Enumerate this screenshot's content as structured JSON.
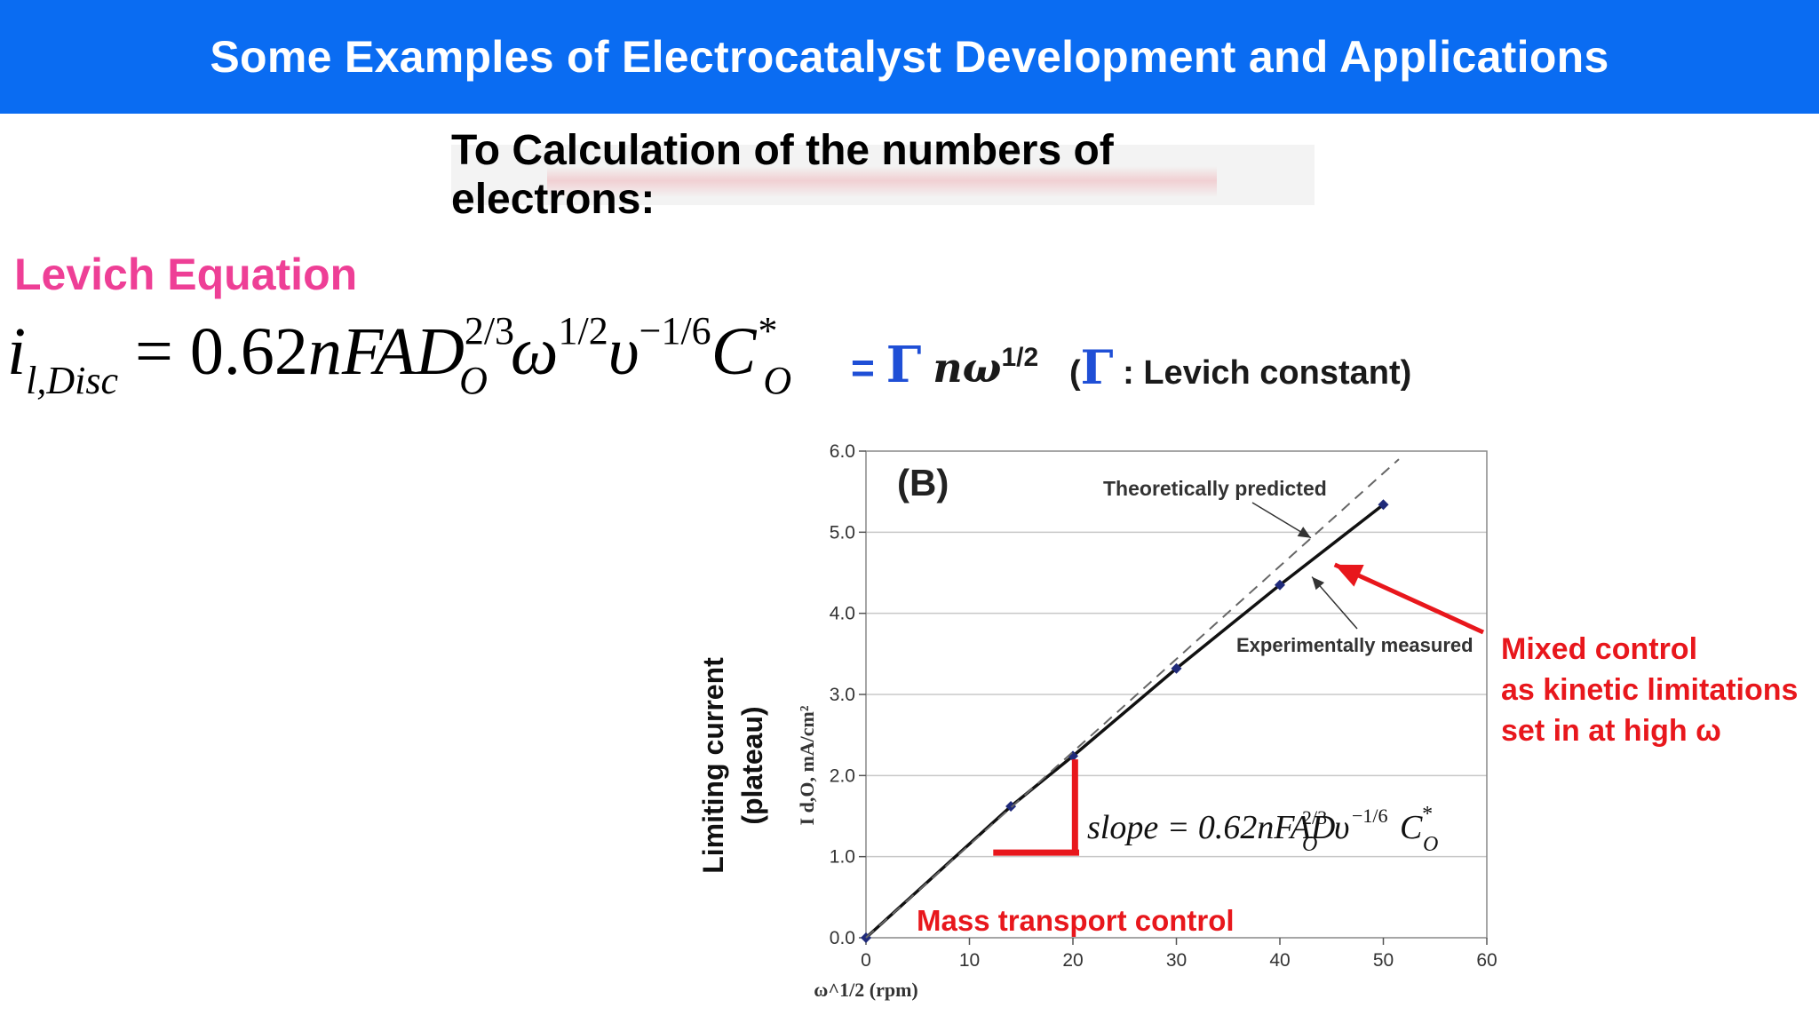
{
  "header": {
    "title": "Some Examples of Electrocatalyst Development and Applications"
  },
  "subtitle": "To Calculation of the numbers of electrons:",
  "section_heading": "Levich Equation",
  "equation": {
    "lhs_i": "i",
    "lhs_sub": "l,Disc",
    "equals": "=",
    "coef": "0.62",
    "nFAD": "nFAD",
    "d_exp": "2/3",
    "d_sub": "O",
    "omega": "ω",
    "omega_exp": "1/2",
    "nu": "υ",
    "nu_exp": "−1/6",
    "c": "C",
    "c_exp": "*",
    "c_sub": "O"
  },
  "gamma_part": {
    "eq": "=",
    "symbol": "Γ",
    "n_omega": "nω",
    "power": "1/2"
  },
  "levich_note": {
    "open": "(",
    "symbol": "Γ",
    "text": " : Levich constant)"
  },
  "colors": {
    "header_bg": "#0a6cf2",
    "heading_pink": "#ee3f96",
    "red": "#e8171c",
    "blue": "#1f4fd6",
    "marker": "#1f2a7a"
  },
  "chart_data": {
    "type": "line",
    "panel_label": "(B)",
    "xlabel": "ω^1/2 (rpm)",
    "ylabel": "I d,O, mA/cm²",
    "outer_ylabel_line1": "Limiting current",
    "outer_ylabel_line2": "(plateau)",
    "xlim": [
      0,
      60
    ],
    "ylim": [
      0.0,
      6.0
    ],
    "x_ticks": [
      "0",
      "10",
      "20",
      "30",
      "40",
      "50",
      "60"
    ],
    "y_ticks": [
      "0.0",
      "1.0",
      "2.0",
      "3.0",
      "4.0",
      "5.0",
      "6.0"
    ],
    "grid": "horizontal",
    "series": [
      {
        "name": "Experimentally measured",
        "style": "solid",
        "x": [
          0,
          14,
          20,
          30,
          40,
          50
        ],
        "y": [
          0.0,
          1.62,
          2.24,
          3.32,
          4.35,
          5.34
        ]
      },
      {
        "name": "Theoretically predicted",
        "style": "dashed",
        "x": [
          0,
          51.5
        ],
        "y": [
          0.0,
          5.9
        ]
      }
    ],
    "annotations": {
      "theoretical": "Theoretically predicted",
      "experimental": "Experimentally measured",
      "slope": "slope = 0.62nFAD",
      "slope_d_exp": "2/3",
      "slope_d_sub": "O",
      "slope_nu": "υ",
      "slope_nu_exp": "−1/6",
      "slope_c": "C",
      "slope_c_exp": "*",
      "slope_c_sub": "O",
      "mass_transport": "Mass transport control",
      "mixed_line1": "Mixed control",
      "mixed_line2": "as kinetic limitations",
      "mixed_line3": "set in at high ω"
    }
  }
}
